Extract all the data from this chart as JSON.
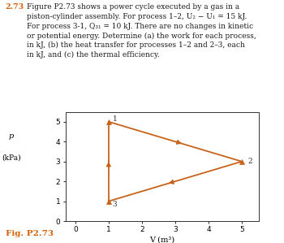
{
  "points": {
    "1": [
      1,
      5
    ],
    "2": [
      5,
      3
    ],
    "3": [
      1,
      1
    ]
  },
  "line_color": "#c8621a",
  "marker_color": "#c8621a",
  "xlabel": "V (m³)",
  "ylabel_line1": "p",
  "ylabel_line2": "(kPa)",
  "xlim": [
    -0.3,
    5.5
  ],
  "ylim": [
    0,
    5.5
  ],
  "xticks": [
    0,
    1,
    2,
    3,
    4,
    5
  ],
  "yticks": [
    0,
    1,
    2,
    3,
    4,
    5
  ],
  "fig_label": "Fig. P2.73",
  "fig_label_color": "#d4600a",
  "problem_number": "2.73",
  "problem_number_color": "#d4600a",
  "problem_text": "Figure P2.73 shows a power cycle executed by a gas in a\npiston-cylinder assembly. For process 1–2, U₂ − U₁ = 15 kJ.\nFor process 3-1, Q₃₁ = 10 kJ. There are no changes in kinetic\nor potential energy. Determine (a) the work for each process,\nin kJ, (b) the heat transfer for processes 1–2 and 2–3, each\nin kJ, and (c) the thermal efficiency.",
  "point_label_offsets": {
    "1": [
      0.12,
      0.12
    ],
    "2": [
      0.18,
      0.0
    ],
    "3": [
      0.12,
      -0.15
    ]
  },
  "arrow_mid_fracs": {
    "1to2": 0.55,
    "2to3": 0.55,
    "3to1": 0.5
  }
}
